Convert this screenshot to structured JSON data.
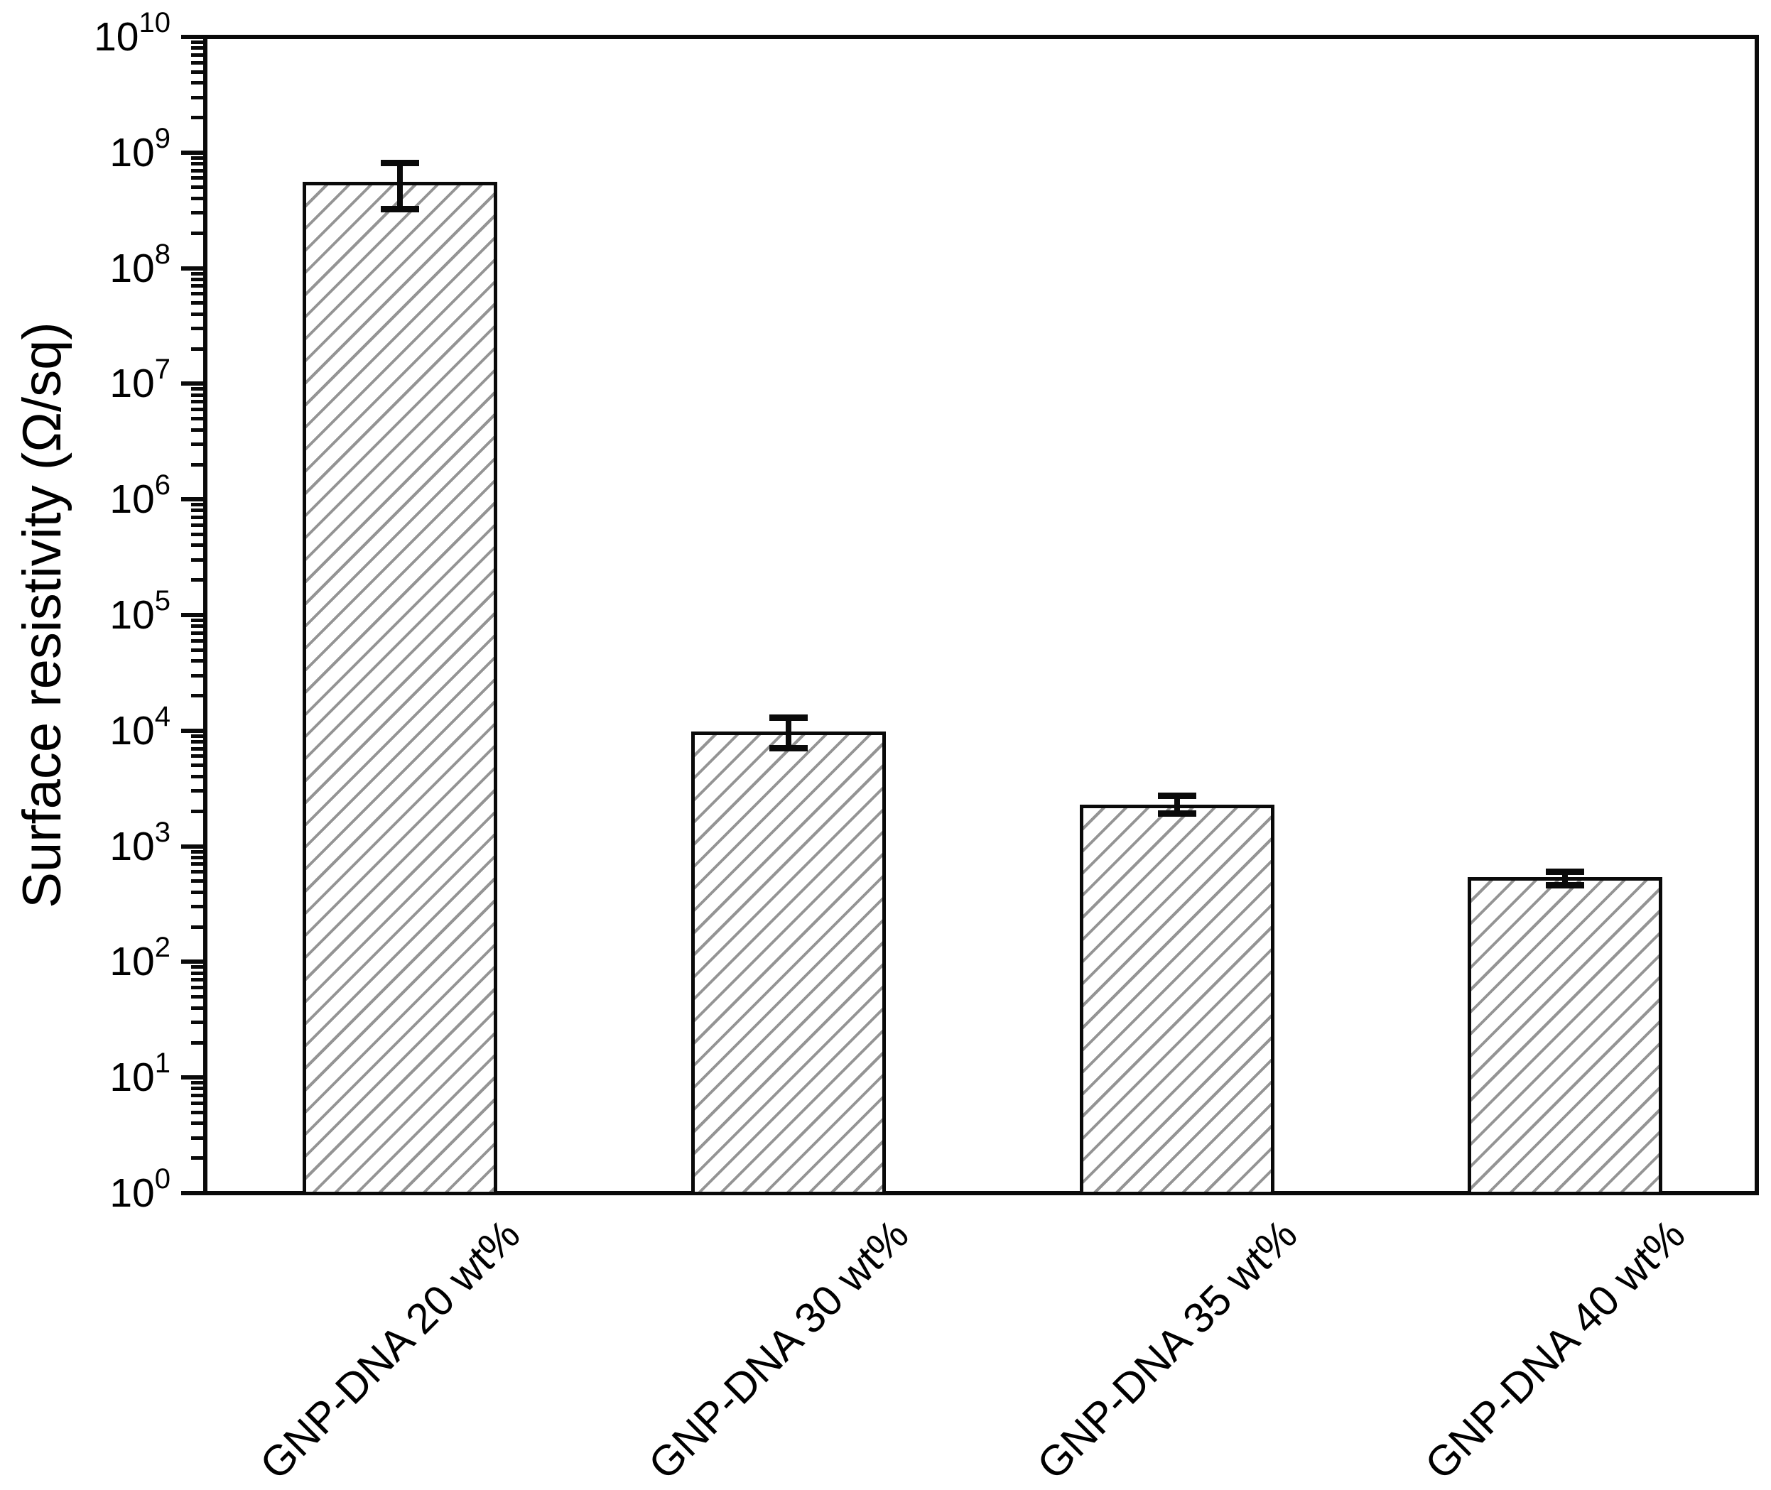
{
  "figure": {
    "background": "#ffffff",
    "axis_color": "#0a0a0a",
    "hatch_color": "#949494",
    "bar_face_color": "#ffffff",
    "ylabel": "Surface resistivity (Ω/sq)"
  },
  "chart_data": {
    "type": "bar",
    "title": "",
    "xlabel": "",
    "ylabel": "Surface resistivity (Ω/sq)",
    "yscale": "log",
    "ylim": [
      1,
      10000000000
    ],
    "grid": false,
    "legend": "none",
    "bar_style": "white fill, gray diagonal hatch, black edge",
    "categories": [
      "GNP-DNA 20 wt%",
      "GNP-DNA 30 wt%",
      "GNP-DNA 35 wt%",
      "GNP-DNA 40 wt%"
    ],
    "values": [
      560000000.0,
      9800.0,
      2300.0,
      540.0
    ],
    "error_low": [
      320000000.0,
      7000.0,
      1900.0,
      460.0
    ],
    "error_high": [
      820000000.0,
      13000.0,
      2750.0,
      610.0
    ],
    "ytick_exponents": [
      0,
      1,
      2,
      3,
      4,
      5,
      6,
      7,
      8,
      9,
      10
    ],
    "ytick_label_base": "10",
    "minor_ticks": "log decades (2-9)"
  }
}
